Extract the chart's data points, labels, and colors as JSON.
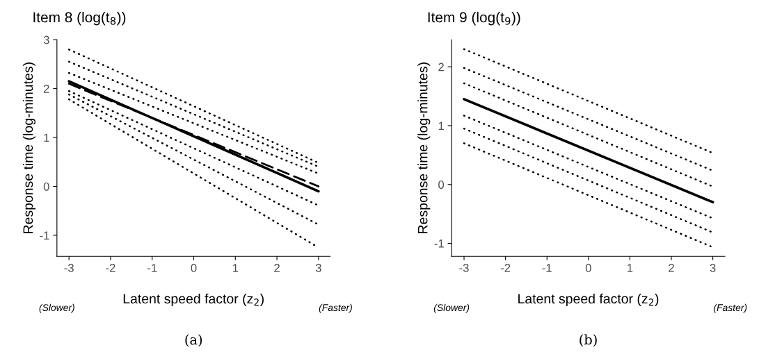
{
  "chart_data": [
    {
      "type": "line",
      "title": "Item 8 (log(t$_{8}$))",
      "xlabel": "Latent speed factor (z$_{2}$)",
      "ylabel": "Response time (log-minutes)",
      "xlim": [
        -3.29,
        3.28
      ],
      "ylim": [
        -1.43,
        3
      ],
      "xticks": [
        -3,
        -2,
        -1,
        0,
        1,
        2,
        3
      ],
      "yticks": [
        -1,
        0,
        1,
        2,
        3
      ],
      "grid": false,
      "legend": false,
      "annotations": [
        "(Slower)",
        "(Faster)",
        "(a)"
      ],
      "series": [
        {
          "color": "#000000",
          "line_style": "solid",
          "x": [
            -3,
            3
          ],
          "values": [
            2.15,
            -0.1
          ]
        },
        {
          "color": "#000000",
          "line_style": "dashed",
          "x": [
            -3,
            3
          ],
          "values": [
            2.1,
            0.0
          ]
        },
        {
          "color": "#000000",
          "line_style": "dotted",
          "x": [
            -3,
            2.95
          ],
          "values": [
            2.8,
            0.5
          ]
        },
        {
          "color": "#000000",
          "line_style": "dotted",
          "x": [
            -3,
            2.95
          ],
          "values": [
            2.55,
            0.42
          ]
        },
        {
          "color": "#000000",
          "line_style": "dotted",
          "x": [
            -3,
            2.95
          ],
          "values": [
            2.32,
            0.28
          ]
        },
        {
          "color": "#000000",
          "line_style": "dotted",
          "x": [
            -3,
            2.95
          ],
          "values": [
            1.95,
            -0.37
          ]
        },
        {
          "color": "#000000",
          "line_style": "dotted",
          "x": [
            -3,
            2.95
          ],
          "values": [
            1.88,
            -0.76
          ]
        },
        {
          "color": "#000000",
          "line_style": "dotted",
          "x": [
            -3,
            2.9
          ],
          "values": [
            1.78,
            -1.2
          ]
        }
      ]
    },
    {
      "type": "line",
      "title": "Item 9 (log(t$_{9}$))",
      "xlabel": "Latent speed factor (z$_{2}$)",
      "ylabel": "Response time (log-minutes)",
      "xlim": [
        -3.3,
        3.29
      ],
      "ylim": [
        -1.22,
        2.46
      ],
      "xticks": [
        -3,
        -2,
        -1,
        0,
        1,
        2,
        3
      ],
      "yticks": [
        -1,
        0,
        1,
        2
      ],
      "grid": false,
      "legend": false,
      "annotations": [
        "(Slower)",
        "(Faster)",
        "(b)"
      ],
      "series": [
        {
          "color": "#000000",
          "line_style": "solid",
          "x": [
            -3,
            3
          ],
          "values": [
            1.45,
            -0.3
          ]
        },
        {
          "color": "#000000",
          "line_style": "dotted",
          "x": [
            -3,
            2.95
          ],
          "values": [
            2.3,
            0.55
          ]
        },
        {
          "color": "#000000",
          "line_style": "dotted",
          "x": [
            -3,
            2.95
          ],
          "values": [
            1.98,
            0.25
          ]
        },
        {
          "color": "#000000",
          "line_style": "dotted",
          "x": [
            -3,
            2.95
          ],
          "values": [
            1.72,
            -0.02
          ]
        },
        {
          "color": "#000000",
          "line_style": "dotted",
          "x": [
            -3,
            2.95
          ],
          "values": [
            1.17,
            -0.56
          ]
        },
        {
          "color": "#000000",
          "line_style": "dotted",
          "x": [
            -3,
            2.95
          ],
          "values": [
            0.95,
            -0.8
          ]
        },
        {
          "color": "#000000",
          "line_style": "dotted",
          "x": [
            -3,
            2.95
          ],
          "values": [
            0.7,
            -1.05
          ]
        }
      ]
    }
  ]
}
